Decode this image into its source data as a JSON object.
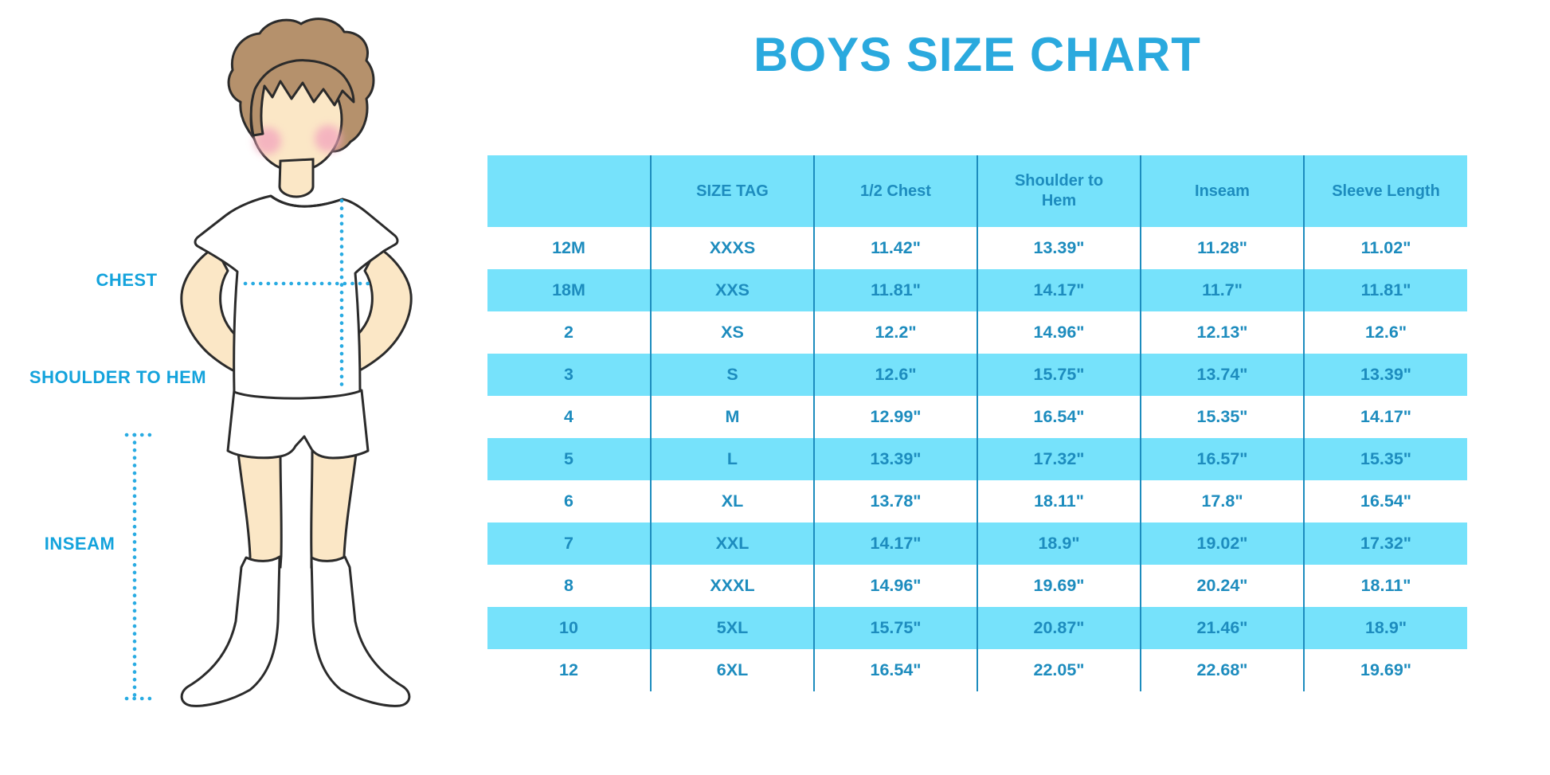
{
  "title": "BOYS SIZE CHART",
  "diagram": {
    "chest_label": "CHEST",
    "shoulder_to_hem_label": "SHOULDER TO HEM",
    "inseam_label": "INSEAM"
  },
  "chart_data": {
    "type": "table",
    "title": "BOYS SIZE CHART",
    "columns": [
      "",
      "SIZE TAG",
      "1/2 Chest",
      "Shoulder to Hem",
      "Inseam",
      "Sleeve Length"
    ],
    "rows": [
      [
        "12M",
        "XXXS",
        "11.42\"",
        "13.39\"",
        "11.28\"",
        "11.02\""
      ],
      [
        "18M",
        "XXS",
        "11.81\"",
        "14.17\"",
        "11.7\"",
        "11.81\""
      ],
      [
        "2",
        "XS",
        "12.2\"",
        "14.96\"",
        "12.13\"",
        "12.6\""
      ],
      [
        "3",
        "S",
        "12.6\"",
        "15.75\"",
        "13.74\"",
        "13.39\""
      ],
      [
        "4",
        "M",
        "12.99\"",
        "16.54\"",
        "15.35\"",
        "14.17\""
      ],
      [
        "5",
        "L",
        "13.39\"",
        "17.32\"",
        "16.57\"",
        "15.35\""
      ],
      [
        "6",
        "XL",
        "13.78\"",
        "18.11\"",
        "17.8\"",
        "16.54\""
      ],
      [
        "7",
        "XXL",
        "14.17\"",
        "18.9\"",
        "19.02\"",
        "17.32\""
      ],
      [
        "8",
        "XXXL",
        "14.96\"",
        "19.69\"",
        "20.24\"",
        "18.11\""
      ],
      [
        "10",
        "5XL",
        "15.75\"",
        "20.87\"",
        "21.46\"",
        "18.9\""
      ],
      [
        "12",
        "6XL",
        "16.54\"",
        "22.05\"",
        "22.68\"",
        "19.69\""
      ]
    ],
    "layout": {
      "striped_rows": true,
      "stripe_on": "even",
      "grid": "vertical-only"
    }
  },
  "colors": {
    "title": "#2AA9DE",
    "ink": "#1D8CBE",
    "line": "#1D8CBE",
    "stripe": "#76E2FB",
    "label": "#14A3DC",
    "dots": "#29ABE2",
    "skin": "#FBE7C6",
    "hair": "#B5916C",
    "blush": "#F3A8BE",
    "outline": "#2B2B2B"
  }
}
